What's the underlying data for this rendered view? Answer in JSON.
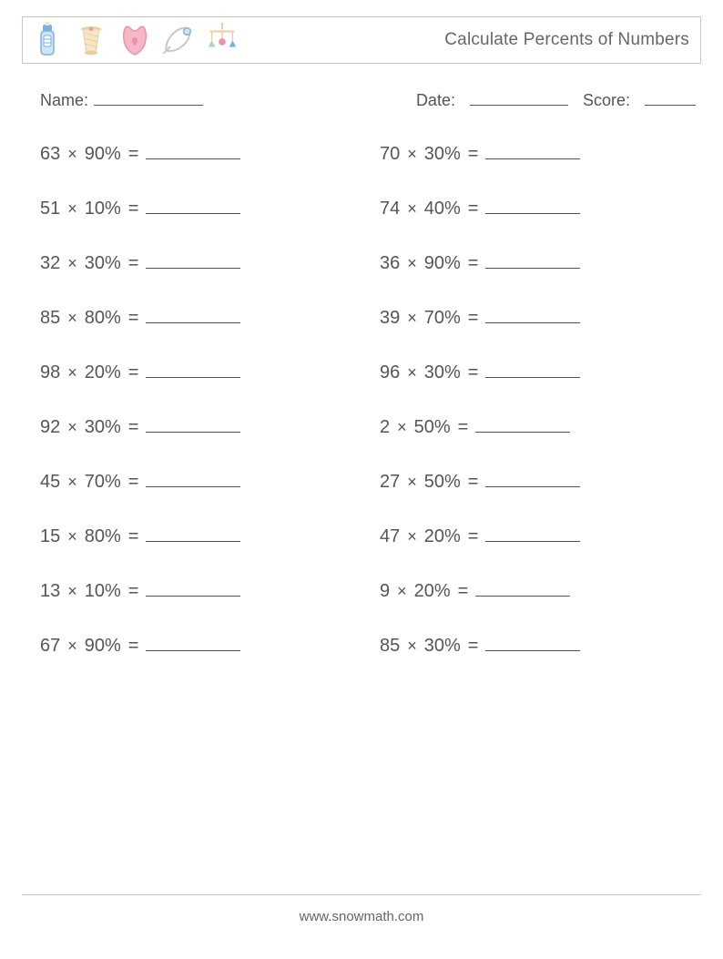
{
  "header": {
    "title": "Calculate Percents of Numbers",
    "icons": [
      "bottle-icon",
      "spool-icon",
      "bib-icon",
      "pin-icon",
      "mobile-icon"
    ]
  },
  "meta": {
    "name_label": "Name:",
    "date_label": "Date:",
    "score_label": "Score:"
  },
  "symbols": {
    "multiply": "×",
    "equals": " = "
  },
  "problems": {
    "left": [
      {
        "a": "63",
        "p": "90%"
      },
      {
        "a": "51",
        "p": "10%"
      },
      {
        "a": "32",
        "p": "30%"
      },
      {
        "a": "85",
        "p": "80%"
      },
      {
        "a": "98",
        "p": "20%"
      },
      {
        "a": "92",
        "p": "30%"
      },
      {
        "a": "45",
        "p": "70%"
      },
      {
        "a": "15",
        "p": "80%"
      },
      {
        "a": "13",
        "p": "10%"
      },
      {
        "a": "67",
        "p": "90%"
      }
    ],
    "right": [
      {
        "a": "70",
        "p": "30%"
      },
      {
        "a": "74",
        "p": "40%"
      },
      {
        "a": "36",
        "p": "90%"
      },
      {
        "a": "39",
        "p": "70%"
      },
      {
        "a": "96",
        "p": "30%"
      },
      {
        "a": "2",
        "p": "50%"
      },
      {
        "a": "27",
        "p": "50%"
      },
      {
        "a": "47",
        "p": "20%"
      },
      {
        "a": "9",
        "p": "20%"
      },
      {
        "a": "85",
        "p": "30%"
      }
    ]
  },
  "footer": {
    "text": "www.snowmath.com"
  },
  "colors": {
    "text": "#555555",
    "border": "#c9c6bf",
    "background": "#ffffff"
  },
  "icon_palette": {
    "blue": "#7bb0e8",
    "blue_light": "#cfe4f7",
    "pink": "#f7b7c6",
    "pink_deep": "#ef8fa9",
    "cream": "#f6e6c8",
    "tan": "#e8cf9f",
    "grey": "#c9c6bf",
    "green": "#a9d9b5"
  }
}
